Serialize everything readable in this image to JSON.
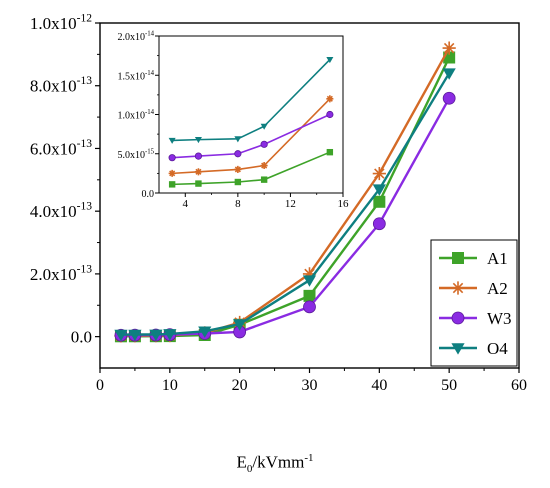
{
  "chart_data": {
    "type": "line",
    "xlabel_main": "E",
    "xlabel_sub": "0",
    "xlabel_rest": "/kVmm",
    "xlabel_sup": "-1",
    "xlim": [
      0,
      60
    ],
    "ylim": [
      -1e-13,
      1e-12
    ],
    "x_ticks": [
      "0",
      "10",
      "20",
      "30",
      "40",
      "50",
      "60"
    ],
    "y_ticks": [
      {
        "mant": "0.0",
        "exp": ""
      },
      {
        "mant": "2.0x10",
        "exp": "-13"
      },
      {
        "mant": "4.0x10",
        "exp": "-13"
      },
      {
        "mant": "6.0x10",
        "exp": "-13"
      },
      {
        "mant": "8.0x10",
        "exp": "-13"
      },
      {
        "mant": "1.0x10",
        "exp": "-12"
      }
    ],
    "legend_position": "bottom-right",
    "x": [
      3,
      5,
      8,
      10,
      15,
      20,
      30,
      40,
      50
    ],
    "series": [
      {
        "name": "A1",
        "color": "#3ea329",
        "marker": "square",
        "values": [
          1.1e-15,
          1.2e-15,
          1.4e-15,
          1.7e-15,
          5.2e-15,
          3.8e-14,
          1.3e-13,
          4.3e-13,
          8.9e-13
        ]
      },
      {
        "name": "A2",
        "color": "#d46a26",
        "marker": "star",
        "values": [
          2.5e-15,
          2.7e-15,
          3e-15,
          3.5e-15,
          1.2e-14,
          4.5e-14,
          2e-13,
          5.2e-13,
          9.2e-13
        ]
      },
      {
        "name": "W3",
        "color": "#8a2be2",
        "marker": "circle",
        "values": [
          4.5e-15,
          4.7e-15,
          5e-15,
          6.2e-15,
          1e-14,
          1.5e-14,
          9.5e-14,
          3.6e-13,
          7.6e-13
        ]
      },
      {
        "name": "O4",
        "color": "#0e7f80",
        "marker": "triangle-down",
        "values": [
          6.7e-15,
          6.8e-15,
          6.9e-15,
          8.5e-15,
          1.7e-14,
          4e-14,
          1.8e-13,
          4.7e-13,
          8.4e-13
        ]
      }
    ],
    "inset": {
      "xlim": [
        2,
        16
      ],
      "ylim": [
        0,
        2e-14
      ],
      "x_ticks": [
        "4",
        "8",
        "12",
        "16"
      ],
      "y_ticks": [
        {
          "mant": "0.0",
          "exp": ""
        },
        {
          "mant": "5.0x10",
          "exp": "-15"
        },
        {
          "mant": "1.0x10",
          "exp": "-14"
        },
        {
          "mant": "1.5x10",
          "exp": "-14"
        },
        {
          "mant": "2.0x10",
          "exp": "-14"
        }
      ],
      "x": [
        3,
        5,
        8,
        10,
        15
      ]
    }
  }
}
